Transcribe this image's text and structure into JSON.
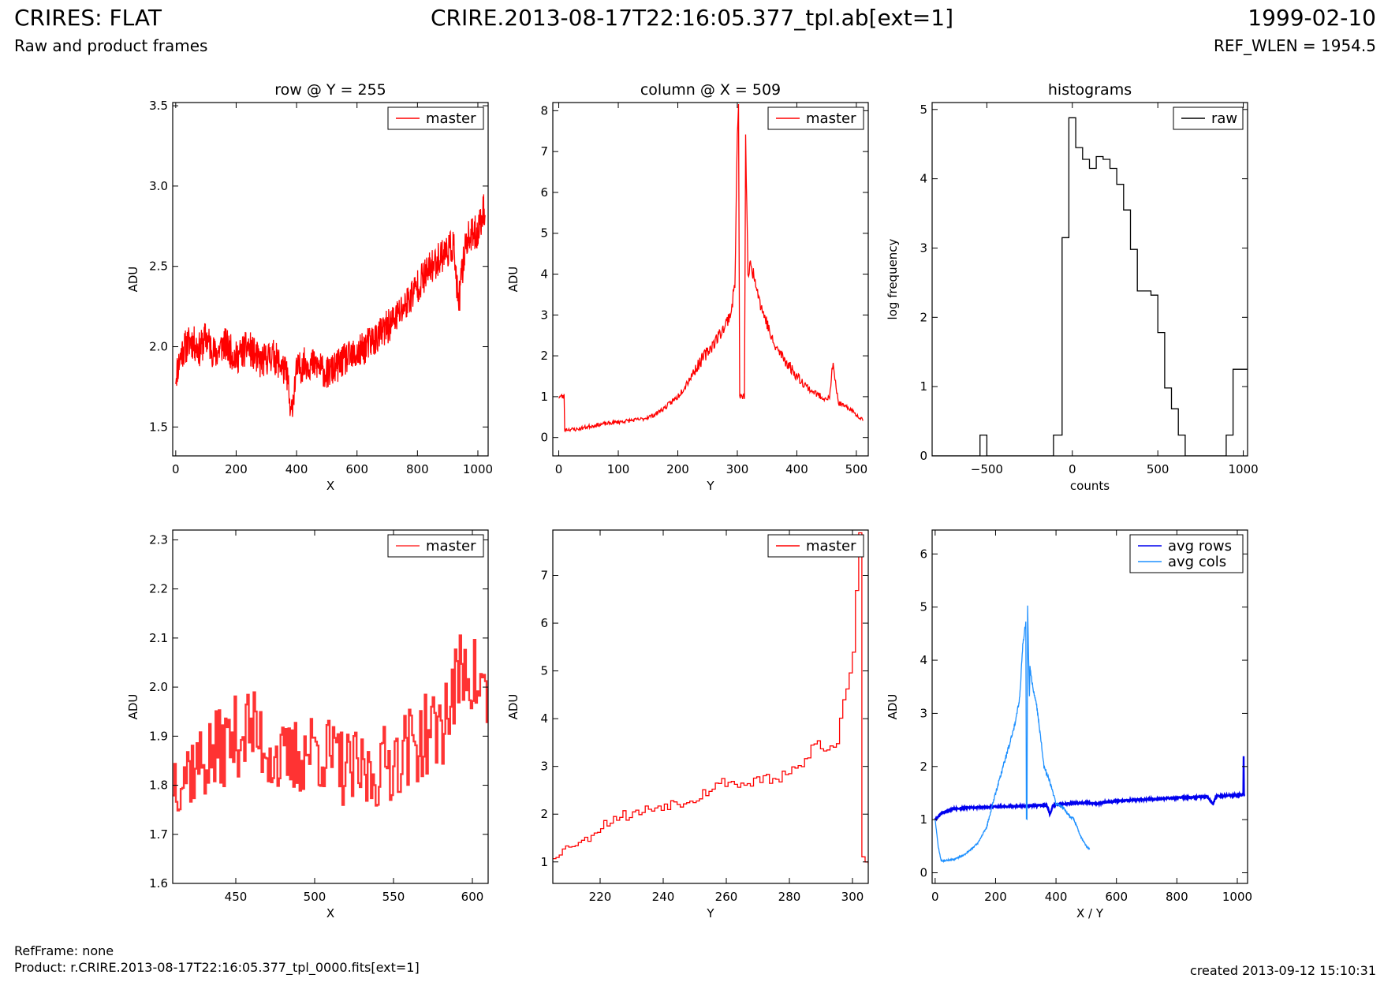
{
  "header": {
    "title_left": "CRIRES: FLAT",
    "subtitle_left": "Raw and product frames",
    "title_center": "CRIRE.2013-08-17T22:16:05.377_tpl.ab[ext=1]",
    "title_right": "1999-02-10",
    "subtitle_right": "REF_WLEN = 1954.5"
  },
  "footer": {
    "ref_frame": "RefFrame: none",
    "product": "Product: r.CRIRE.2013-08-17T22:16:05.377_tpl_0000.fits[ext=1]",
    "created": "created 2013-09-12 15:10:31"
  },
  "colors": {
    "red": "#ff0000",
    "red_light": "#ff3333",
    "black": "#000000",
    "blue": "#0000ee",
    "light_blue": "#1e90ff"
  },
  "chart_data": [
    {
      "id": "row",
      "type": "line",
      "title": "row @ Y = 255",
      "xlabel": "X",
      "ylabel": "ADU",
      "xlim": [
        -10,
        1034
      ],
      "ylim": [
        1.32,
        3.52
      ],
      "xticks": [
        0,
        200,
        400,
        600,
        800,
        1000
      ],
      "yticks": [
        1.5,
        2.0,
        2.5,
        3.0,
        3.5
      ],
      "ytick_labels": [
        "1.5",
        "2.0",
        "2.5",
        "3.0",
        "3.5"
      ],
      "legend": "top-right",
      "series": [
        {
          "name": "master",
          "color": "#ff0000",
          "x": [
            0,
            20,
            50,
            80,
            100,
            130,
            160,
            200,
            240,
            280,
            320,
            350,
            370,
            380,
            400,
            430,
            470,
            500,
            530,
            560,
            600,
            640,
            680,
            720,
            760,
            800,
            840,
            880,
            920,
            935,
            960,
            1000,
            1024
          ],
          "y": [
            1.82,
            1.97,
            2.04,
            1.98,
            2.06,
            1.95,
            2.02,
            1.93,
            2.0,
            1.9,
            1.95,
            1.88,
            1.82,
            1.56,
            1.85,
            1.9,
            1.88,
            1.83,
            1.87,
            1.92,
            1.95,
            2.02,
            2.08,
            2.16,
            2.26,
            2.38,
            2.48,
            2.57,
            2.63,
            2.25,
            2.66,
            2.72,
            2.88
          ],
          "noise": 0.11,
          "seed": 11,
          "dense": 1024
        }
      ]
    },
    {
      "id": "col",
      "type": "line",
      "title": "column @ X = 509",
      "xlabel": "Y",
      "ylabel": "ADU",
      "xlim": [
        -10,
        520
      ],
      "ylim": [
        -0.45,
        8.2
      ],
      "xticks": [
        0,
        100,
        200,
        300,
        400,
        500
      ],
      "yticks": [
        0,
        1,
        2,
        3,
        4,
        5,
        6,
        7,
        8
      ],
      "ytick_labels": [
        "0",
        "1",
        "2",
        "3",
        "4",
        "5",
        "6",
        "7",
        "8"
      ],
      "legend": "top-right",
      "series": [
        {
          "name": "master",
          "color": "#ff0000",
          "x": [
            0,
            9,
            10,
            30,
            60,
            100,
            140,
            160,
            180,
            200,
            220,
            240,
            260,
            280,
            290,
            296,
            300,
            302,
            304,
            306,
            312,
            314,
            318,
            322,
            330,
            340,
            350,
            360,
            380,
            400,
            420,
            440,
            455,
            460,
            470,
            480,
            490,
            500,
            511
          ],
          "y": [
            1.0,
            1.0,
            0.2,
            0.2,
            0.3,
            0.38,
            0.45,
            0.55,
            0.75,
            1.0,
            1.45,
            1.9,
            2.3,
            2.75,
            3.1,
            3.8,
            7.4,
            8.2,
            1.0,
            1.0,
            1.0,
            7.3,
            4.0,
            4.2,
            3.9,
            3.2,
            2.8,
            2.3,
            1.9,
            1.5,
            1.2,
            1.0,
            0.95,
            1.8,
            0.85,
            0.75,
            0.7,
            0.55,
            0.45
          ],
          "noise": 0.16,
          "seed": 23,
          "dense": 512
        }
      ]
    },
    {
      "id": "hist",
      "type": "line",
      "title": "histograms",
      "xlabel": "counts",
      "ylabel": "log frequency",
      "xlim": [
        -820,
        1025
      ],
      "ylim": [
        0,
        5.1
      ],
      "xticks": [
        -500,
        0,
        500,
        1000
      ],
      "xtick_labels": [
        "−500",
        "0",
        "500",
        "1000"
      ],
      "yticks": [
        0,
        1,
        2,
        3,
        4,
        5
      ],
      "ytick_labels": [
        "0",
        "1",
        "2",
        "3",
        "4",
        "5"
      ],
      "legend": "top-right",
      "step": true,
      "series": [
        {
          "name": "raw",
          "color": "#000000",
          "x": [
            -820,
            -540,
            -500,
            -110,
            -60,
            -20,
            20,
            60,
            100,
            140,
            180,
            220,
            260,
            300,
            340,
            380,
            420,
            460,
            500,
            540,
            580,
            620,
            660,
            700,
            740,
            780,
            820,
            860,
            900,
            940,
            980,
            1025
          ],
          "y": [
            0,
            0.3,
            0,
            0.3,
            3.15,
            4.88,
            4.45,
            4.28,
            4.15,
            4.32,
            4.28,
            4.15,
            3.92,
            3.55,
            2.98,
            2.38,
            2.38,
            2.32,
            1.78,
            0.98,
            0.68,
            0.3,
            0,
            0,
            0,
            0,
            0,
            0,
            0.3,
            1.25,
            1.25,
            1.25
          ],
          "noise": 0,
          "seed": 0,
          "dense": 0
        }
      ]
    },
    {
      "id": "row_zoom",
      "type": "line",
      "title": "",
      "xlabel": "X",
      "ylabel": "ADU",
      "xlim": [
        410,
        610
      ],
      "ylim": [
        1.6,
        2.32
      ],
      "xticks": [
        450,
        500,
        550,
        600
      ],
      "yticks": [
        1.6,
        1.7,
        1.8,
        1.9,
        2.0,
        2.1,
        2.2,
        2.3
      ],
      "ytick_labels": [
        "1.6",
        "1.7",
        "1.8",
        "1.9",
        "2.0",
        "2.1",
        "2.2",
        "2.3"
      ],
      "legend": "top-right",
      "step": true,
      "series": [
        {
          "name": "master",
          "color": "#ff3333",
          "x": [
            410,
            430,
            458,
            480,
            500,
            520,
            535,
            560,
            580,
            595,
            610
          ],
          "y": [
            1.82,
            1.85,
            1.92,
            1.84,
            1.88,
            1.83,
            1.82,
            1.88,
            1.92,
            2.05,
            1.97
          ],
          "noise": 0.09,
          "seed": 37,
          "dense": 200
        }
      ]
    },
    {
      "id": "col_zoom",
      "type": "line",
      "title": "",
      "xlabel": "Y",
      "ylabel": "ADU",
      "xlim": [
        205,
        305
      ],
      "ylim": [
        0.55,
        7.95
      ],
      "xticks": [
        220,
        240,
        260,
        280,
        300
      ],
      "yticks": [
        1,
        2,
        3,
        4,
        5,
        6,
        7
      ],
      "ytick_labels": [
        "1",
        "2",
        "3",
        "4",
        "5",
        "6",
        "7"
      ],
      "legend": "top-right",
      "step": true,
      "series": [
        {
          "name": "master",
          "color": "#ff0000",
          "x": [
            205,
            210,
            215,
            220,
            225,
            230,
            235,
            240,
            245,
            250,
            255,
            260,
            265,
            270,
            275,
            280,
            285,
            288,
            290,
            292,
            295,
            297,
            299,
            300,
            301,
            302,
            303,
            305
          ],
          "y": [
            1.1,
            1.35,
            1.45,
            1.75,
            1.95,
            2.0,
            2.1,
            2.2,
            2.25,
            2.35,
            2.55,
            2.7,
            2.6,
            2.75,
            2.7,
            2.85,
            3.1,
            3.6,
            3.3,
            3.35,
            3.5,
            4.5,
            4.9,
            5.5,
            6.8,
            7.95,
            1.0,
            1.0
          ],
          "noise": 0.12,
          "seed": 53,
          "dense": 100
        }
      ]
    },
    {
      "id": "avg",
      "type": "line",
      "title": "",
      "xlabel": "X / Y",
      "ylabel": "ADU",
      "xlim": [
        -10,
        1034
      ],
      "ylim": [
        -0.2,
        6.45
      ],
      "xticks": [
        0,
        200,
        400,
        600,
        800,
        1000
      ],
      "yticks": [
        0,
        1,
        2,
        3,
        4,
        5,
        6
      ],
      "ytick_labels": [
        "0",
        "1",
        "2",
        "3",
        "4",
        "5",
        "6"
      ],
      "legend": "top-right",
      "series": [
        {
          "name": "avg rows",
          "color": "#0000ee",
          "x": [
            0,
            20,
            60,
            100,
            200,
            300,
            370,
            380,
            390,
            400,
            500,
            540,
            560,
            600,
            700,
            800,
            900,
            920,
            930,
            940,
            1000,
            1020,
            1021,
            1022,
            1024
          ],
          "y": [
            1.0,
            1.12,
            1.2,
            1.22,
            1.24,
            1.26,
            1.27,
            1.1,
            1.27,
            1.28,
            1.32,
            1.3,
            1.33,
            1.35,
            1.38,
            1.41,
            1.43,
            1.3,
            1.44,
            1.45,
            1.46,
            1.47,
            2.2,
            1.47,
            1.47
          ],
          "noise": 0.025,
          "seed": 61,
          "dense": 1024
        },
        {
          "name": "avg cols",
          "color": "#1e90ff",
          "x": [
            0,
            10,
            20,
            60,
            100,
            140,
            170,
            200,
            230,
            260,
            280,
            290,
            300,
            302,
            304,
            306,
            312,
            314,
            320,
            340,
            360,
            380,
            400,
            420,
            440,
            460,
            480,
            500,
            511
          ],
          "y": [
            1.0,
            0.5,
            0.22,
            0.25,
            0.35,
            0.55,
            0.85,
            1.5,
            2.1,
            2.7,
            3.3,
            4.3,
            4.7,
            1.0,
            1.0,
            5.0,
            3.3,
            3.9,
            3.6,
            3.0,
            2.0,
            1.7,
            1.3,
            1.25,
            1.1,
            1.0,
            0.7,
            0.5,
            0.45
          ],
          "noise": 0.05,
          "seed": 71,
          "dense": 512
        }
      ]
    }
  ]
}
